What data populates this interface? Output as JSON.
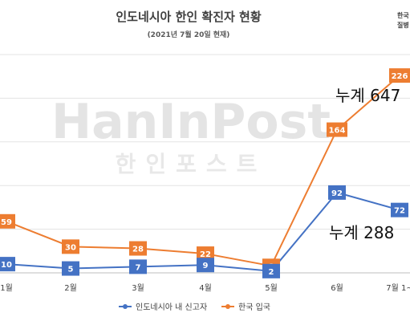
{
  "chart_data": {
    "type": "line",
    "title": "인도네시아 한인 확진자 현황",
    "subtitle": "(2021년 7월 20일 현재)",
    "source_lines": [
      "한국",
      "질병"
    ],
    "categories": [
      "1월",
      "2월",
      "3월",
      "4월",
      "5월",
      "6월",
      "7월 1~"
    ],
    "ylim": [
      0,
      250
    ],
    "grid": true,
    "legend_position": "bottom",
    "series": [
      {
        "name": "인도네시아 내 신고자",
        "color": "#4472C4",
        "values": [
          10,
          5,
          7,
          9,
          2,
          92,
          72
        ]
      },
      {
        "name": "한국 입국",
        "color": "#ED7D31",
        "values": [
          59,
          30,
          28,
          22,
          8,
          164,
          226
        ]
      }
    ],
    "data_labels": {
      "blue": [
        "10",
        "5",
        "7",
        "9",
        "2",
        "92",
        "72"
      ],
      "orange": [
        "59",
        "30",
        "28",
        "22",
        "8",
        "164",
        "226"
      ]
    },
    "annotations": [
      {
        "text": "누계 647",
        "series": "한국 입국"
      },
      {
        "text": "누계 288",
        "series": "인도네시아 내 신고자"
      }
    ],
    "watermark": {
      "main": "HanInPost",
      "sub": "한인포스트"
    }
  }
}
